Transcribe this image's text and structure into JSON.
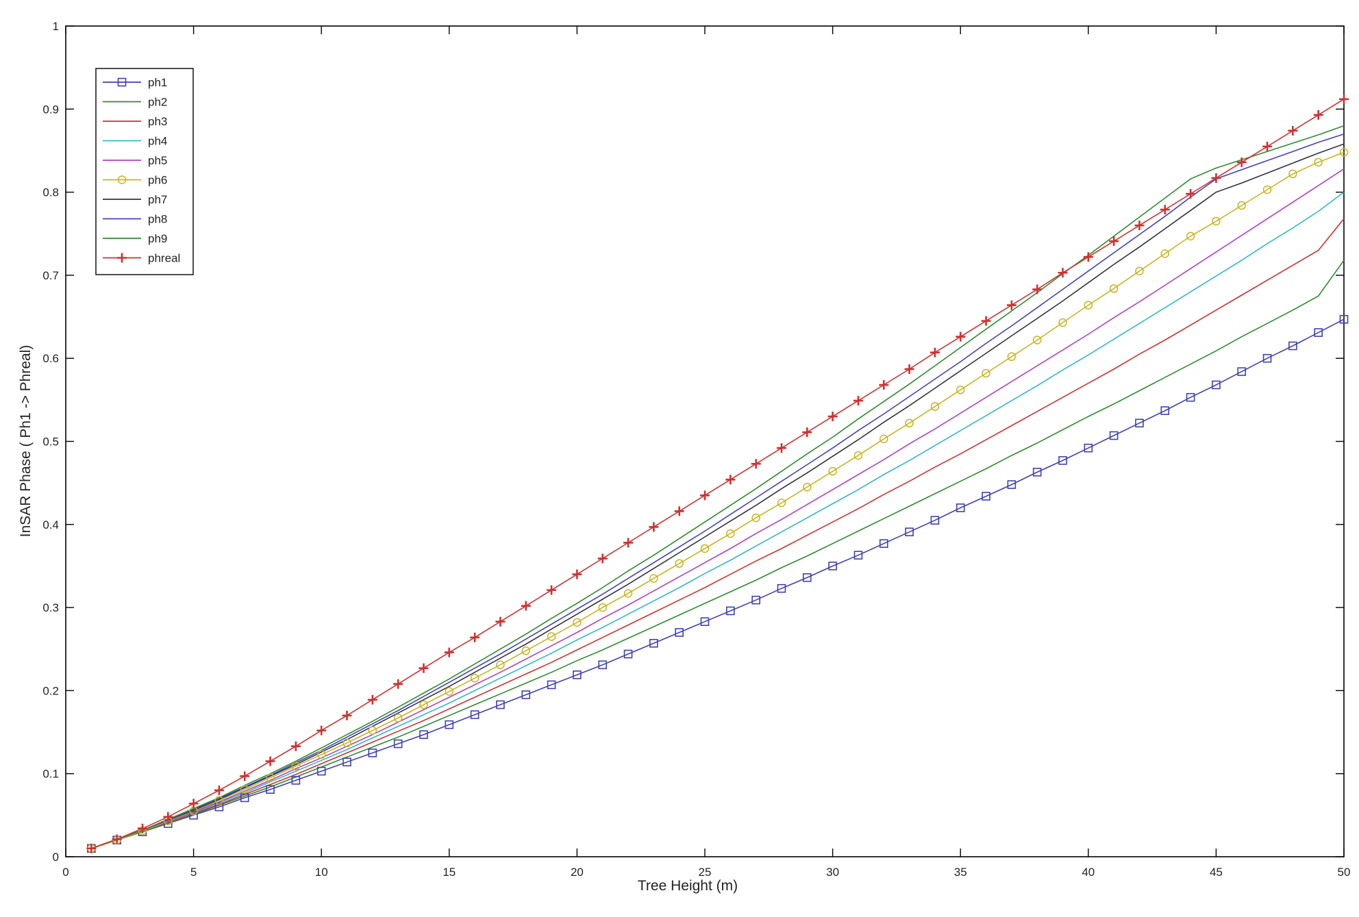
{
  "chart_data": {
    "type": "line",
    "xlabel": "Tree Height (m)",
    "ylabel": "InSAR Phase ( Ph1 -> Phreal)",
    "xlim": [
      0,
      50
    ],
    "ylim": [
      0,
      1
    ],
    "xticks": [
      "0",
      "5",
      "10",
      "15",
      "20",
      "25",
      "30",
      "35",
      "40",
      "45",
      "50"
    ],
    "yticks": [
      "0",
      "0.1",
      "0.2",
      "0.3",
      "0.4",
      "0.5",
      "0.6",
      "0.7",
      "0.8",
      "0.9",
      "1"
    ],
    "grid": false,
    "legend_position": "top-left",
    "x": [
      1,
      2,
      3,
      4,
      5,
      6,
      7,
      8,
      9,
      10,
      11,
      12,
      13,
      14,
      15,
      16,
      17,
      18,
      19,
      20,
      21,
      22,
      23,
      24,
      25,
      26,
      27,
      28,
      29,
      30,
      31,
      32,
      33,
      34,
      35,
      36,
      37,
      38,
      39,
      40,
      41,
      42,
      43,
      44,
      45,
      46,
      47,
      48,
      49,
      50
    ],
    "series": [
      {
        "name": "ph1",
        "color": "#3f3fb5",
        "marker": "square",
        "values": [
          0.01,
          0.02,
          0.03,
          0.04,
          0.05,
          0.06,
          0.071,
          0.081,
          0.092,
          0.103,
          0.114,
          0.125,
          0.136,
          0.147,
          0.159,
          0.171,
          0.183,
          0.195,
          0.207,
          0.219,
          0.231,
          0.244,
          0.257,
          0.27,
          0.283,
          0.296,
          0.309,
          0.323,
          0.336,
          0.35,
          0.363,
          0.377,
          0.391,
          0.405,
          0.42,
          0.434,
          0.448,
          0.463,
          0.477,
          0.492,
          0.507,
          0.522,
          0.537,
          0.553,
          0.568,
          0.584,
          0.6,
          0.615,
          0.631,
          0.647
        ]
      },
      {
        "name": "ph2",
        "color": "#2e8b2e",
        "marker": "none",
        "values": [
          0.01,
          0.02,
          0.03,
          0.04,
          0.051,
          0.062,
          0.073,
          0.084,
          0.096,
          0.108,
          0.12,
          0.132,
          0.144,
          0.157,
          0.17,
          0.183,
          0.196,
          0.209,
          0.222,
          0.236,
          0.249,
          0.263,
          0.277,
          0.291,
          0.305,
          0.319,
          0.333,
          0.348,
          0.362,
          0.377,
          0.392,
          0.407,
          0.422,
          0.437,
          0.452,
          0.467,
          0.483,
          0.498,
          0.514,
          0.53,
          0.545,
          0.561,
          0.577,
          0.593,
          0.609,
          0.626,
          0.642,
          0.658,
          0.675,
          0.718
        ]
      },
      {
        "name": "ph3",
        "color": "#d03030",
        "marker": "none",
        "values": [
          0.01,
          0.02,
          0.031,
          0.041,
          0.052,
          0.063,
          0.075,
          0.087,
          0.099,
          0.112,
          0.125,
          0.138,
          0.151,
          0.164,
          0.178,
          0.192,
          0.206,
          0.22,
          0.234,
          0.249,
          0.264,
          0.279,
          0.294,
          0.309,
          0.324,
          0.34,
          0.356,
          0.371,
          0.387,
          0.403,
          0.419,
          0.436,
          0.452,
          0.469,
          0.485,
          0.502,
          0.519,
          0.536,
          0.553,
          0.57,
          0.587,
          0.605,
          0.622,
          0.64,
          0.658,
          0.676,
          0.694,
          0.712,
          0.73,
          0.768
        ]
      },
      {
        "name": "ph4",
        "color": "#30b8c8",
        "marker": "none",
        "values": [
          0.01,
          0.02,
          0.031,
          0.042,
          0.053,
          0.065,
          0.077,
          0.09,
          0.103,
          0.116,
          0.129,
          0.143,
          0.157,
          0.171,
          0.185,
          0.2,
          0.215,
          0.23,
          0.245,
          0.261,
          0.276,
          0.292,
          0.308,
          0.324,
          0.341,
          0.357,
          0.374,
          0.391,
          0.408,
          0.425,
          0.442,
          0.46,
          0.477,
          0.495,
          0.513,
          0.531,
          0.549,
          0.567,
          0.586,
          0.604,
          0.623,
          0.642,
          0.661,
          0.68,
          0.699,
          0.718,
          0.738,
          0.757,
          0.777,
          0.8
        ]
      },
      {
        "name": "ph5",
        "color": "#b040c0",
        "marker": "none",
        "values": [
          0.01,
          0.02,
          0.031,
          0.042,
          0.054,
          0.066,
          0.079,
          0.092,
          0.106,
          0.119,
          0.133,
          0.147,
          0.162,
          0.177,
          0.192,
          0.207,
          0.222,
          0.238,
          0.254,
          0.27,
          0.287,
          0.303,
          0.32,
          0.337,
          0.354,
          0.371,
          0.389,
          0.406,
          0.424,
          0.442,
          0.46,
          0.478,
          0.497,
          0.515,
          0.534,
          0.553,
          0.572,
          0.591,
          0.61,
          0.629,
          0.649,
          0.668,
          0.688,
          0.708,
          0.728,
          0.748,
          0.768,
          0.788,
          0.808,
          0.828
        ]
      },
      {
        "name": "ph6",
        "color": "#c8b420",
        "marker": "circle",
        "values": [
          0.01,
          0.02,
          0.031,
          0.043,
          0.055,
          0.068,
          0.081,
          0.095,
          0.109,
          0.123,
          0.137,
          0.152,
          0.167,
          0.183,
          0.199,
          0.215,
          0.231,
          0.248,
          0.265,
          0.282,
          0.3,
          0.317,
          0.335,
          0.353,
          0.371,
          0.389,
          0.408,
          0.426,
          0.445,
          0.464,
          0.483,
          0.503,
          0.522,
          0.542,
          0.562,
          0.582,
          0.602,
          0.622,
          0.643,
          0.664,
          0.684,
          0.705,
          0.726,
          0.747,
          0.765,
          0.784,
          0.803,
          0.822,
          0.836,
          0.848
        ]
      },
      {
        "name": "ph7",
        "color": "#303040",
        "marker": "none",
        "values": [
          0.01,
          0.021,
          0.032,
          0.044,
          0.056,
          0.069,
          0.083,
          0.097,
          0.111,
          0.126,
          0.141,
          0.157,
          0.173,
          0.189,
          0.205,
          0.222,
          0.239,
          0.256,
          0.274,
          0.292,
          0.31,
          0.328,
          0.347,
          0.366,
          0.385,
          0.404,
          0.423,
          0.443,
          0.462,
          0.482,
          0.502,
          0.523,
          0.543,
          0.564,
          0.585,
          0.606,
          0.627,
          0.648,
          0.669,
          0.691,
          0.713,
          0.734,
          0.756,
          0.778,
          0.8,
          0.811,
          0.823,
          0.835,
          0.847,
          0.858
        ]
      },
      {
        "name": "ph8",
        "color": "#4040c0",
        "marker": "none",
        "values": [
          0.01,
          0.021,
          0.032,
          0.044,
          0.057,
          0.07,
          0.084,
          0.098,
          0.113,
          0.128,
          0.144,
          0.16,
          0.176,
          0.193,
          0.21,
          0.227,
          0.244,
          0.262,
          0.28,
          0.298,
          0.316,
          0.335,
          0.354,
          0.373,
          0.392,
          0.412,
          0.432,
          0.452,
          0.472,
          0.492,
          0.513,
          0.533,
          0.554,
          0.575,
          0.596,
          0.618,
          0.639,
          0.661,
          0.683,
          0.705,
          0.727,
          0.749,
          0.771,
          0.794,
          0.816,
          0.827,
          0.838,
          0.849,
          0.86,
          0.87
        ]
      },
      {
        "name": "ph9",
        "color": "#2e8b2e",
        "marker": "none",
        "values": [
          0.01,
          0.021,
          0.032,
          0.045,
          0.058,
          0.071,
          0.086,
          0.1,
          0.115,
          0.131,
          0.147,
          0.163,
          0.18,
          0.197,
          0.214,
          0.232,
          0.25,
          0.268,
          0.287,
          0.305,
          0.324,
          0.344,
          0.363,
          0.383,
          0.403,
          0.423,
          0.443,
          0.464,
          0.485,
          0.505,
          0.527,
          0.548,
          0.569,
          0.591,
          0.613,
          0.635,
          0.657,
          0.679,
          0.702,
          0.724,
          0.747,
          0.77,
          0.793,
          0.816,
          0.829,
          0.839,
          0.849,
          0.859,
          0.869,
          0.88
        ]
      },
      {
        "name": "phreal",
        "color": "#d03030",
        "marker": "plus",
        "values": [
          0.01,
          0.021,
          0.034,
          0.048,
          0.064,
          0.08,
          0.097,
          0.115,
          0.133,
          0.152,
          0.17,
          0.189,
          0.208,
          0.227,
          0.246,
          0.264,
          0.283,
          0.302,
          0.321,
          0.34,
          0.359,
          0.378,
          0.397,
          0.416,
          0.435,
          0.454,
          0.473,
          0.492,
          0.511,
          0.53,
          0.549,
          0.568,
          0.587,
          0.607,
          0.626,
          0.645,
          0.664,
          0.683,
          0.703,
          0.722,
          0.741,
          0.76,
          0.779,
          0.798,
          0.817,
          0.836,
          0.855,
          0.874,
          0.893,
          0.912
        ]
      }
    ]
  }
}
